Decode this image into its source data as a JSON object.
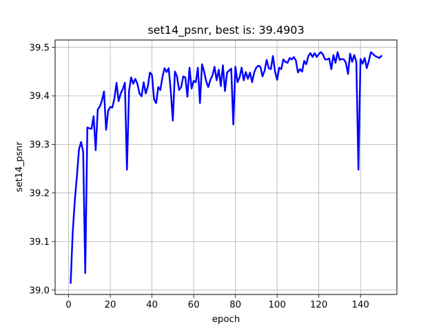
{
  "chart_data": {
    "type": "line",
    "title": "set14_psnr, best is: 39.4903",
    "xlabel": "epoch",
    "ylabel": "set14_psnr",
    "xlim": [
      -6.45,
      157.45
    ],
    "ylim": [
      38.991,
      39.515
    ],
    "xticks": [
      0,
      20,
      40,
      60,
      80,
      100,
      120,
      140
    ],
    "xtick_labels": [
      "0",
      "20",
      "40",
      "60",
      "80",
      "100",
      "120",
      "140"
    ],
    "yticks": [
      39.0,
      39.1,
      39.2,
      39.3,
      39.4,
      39.5
    ],
    "ytick_labels": [
      "39.0",
      "39.1",
      "39.2",
      "39.3",
      "39.4",
      "39.5"
    ],
    "grid": true,
    "series": [
      {
        "color": "#0000ff",
        "x": [
          1,
          2,
          3,
          4,
          5,
          6,
          7,
          8,
          9,
          10,
          11,
          12,
          13,
          14,
          15,
          16,
          17,
          18,
          19,
          20,
          21,
          22,
          23,
          24,
          25,
          26,
          27,
          28,
          29,
          30,
          31,
          32,
          33,
          34,
          35,
          36,
          37,
          38,
          39,
          40,
          41,
          42,
          43,
          44,
          45,
          46,
          47,
          48,
          49,
          50,
          51,
          52,
          53,
          54,
          55,
          56,
          57,
          58,
          59,
          60,
          61,
          62,
          63,
          64,
          65,
          66,
          67,
          68,
          69,
          70,
          71,
          72,
          73,
          74,
          75,
          76,
          77,
          78,
          79,
          80,
          81,
          82,
          83,
          84,
          85,
          86,
          87,
          88,
          89,
          90,
          91,
          92,
          93,
          94,
          95,
          96,
          97,
          98,
          99,
          100,
          101,
          102,
          103,
          104,
          105,
          106,
          107,
          108,
          109,
          110,
          111,
          112,
          113,
          114,
          115,
          116,
          117,
          118,
          119,
          120,
          121,
          122,
          123,
          124,
          125,
          126,
          127,
          128,
          129,
          130,
          131,
          132,
          133,
          134,
          135,
          136,
          137,
          138,
          139,
          140,
          141,
          142,
          143,
          144,
          145,
          146,
          147,
          148,
          149,
          150
        ],
        "y": [
          39.015,
          39.12,
          39.185,
          39.235,
          39.29,
          39.305,
          39.285,
          39.035,
          39.335,
          39.333,
          39.332,
          39.358,
          39.288,
          39.372,
          39.378,
          39.39,
          39.409,
          39.33,
          39.37,
          39.377,
          39.376,
          39.395,
          39.427,
          39.389,
          39.405,
          39.414,
          39.427,
          39.248,
          39.41,
          39.438,
          39.425,
          39.435,
          39.425,
          39.405,
          39.399,
          39.428,
          39.405,
          39.419,
          39.448,
          39.443,
          39.393,
          39.385,
          39.418,
          39.412,
          39.438,
          39.457,
          39.449,
          39.457,
          39.41,
          39.349,
          39.45,
          39.44,
          39.412,
          39.418,
          39.44,
          39.438,
          39.398,
          39.458,
          39.415,
          39.431,
          39.428,
          39.458,
          39.385,
          39.465,
          39.45,
          39.43,
          39.418,
          39.433,
          39.442,
          39.46,
          39.432,
          39.454,
          39.42,
          39.463,
          39.41,
          39.448,
          39.452,
          39.456,
          39.341,
          39.46,
          39.428,
          39.438,
          39.458,
          39.432,
          39.449,
          39.435,
          39.448,
          39.428,
          39.448,
          39.458,
          39.462,
          39.46,
          39.44,
          39.452,
          39.474,
          39.457,
          39.455,
          39.482,
          39.45,
          39.433,
          39.458,
          39.455,
          39.475,
          39.47,
          39.468,
          39.478,
          39.475,
          39.48,
          39.473,
          39.448,
          39.455,
          39.45,
          39.472,
          39.465,
          39.482,
          39.488,
          39.48,
          39.488,
          39.48,
          39.486,
          39.49,
          39.485,
          39.475,
          39.475,
          39.477,
          39.455,
          39.484,
          39.468,
          39.49,
          39.474,
          39.476,
          39.475,
          39.468,
          39.445,
          39.487,
          39.47,
          39.484,
          39.47,
          39.248,
          39.476,
          39.466,
          39.478,
          39.457,
          39.472,
          39.49,
          39.486,
          39.482,
          39.48,
          39.478,
          39.482
        ]
      }
    ]
  }
}
